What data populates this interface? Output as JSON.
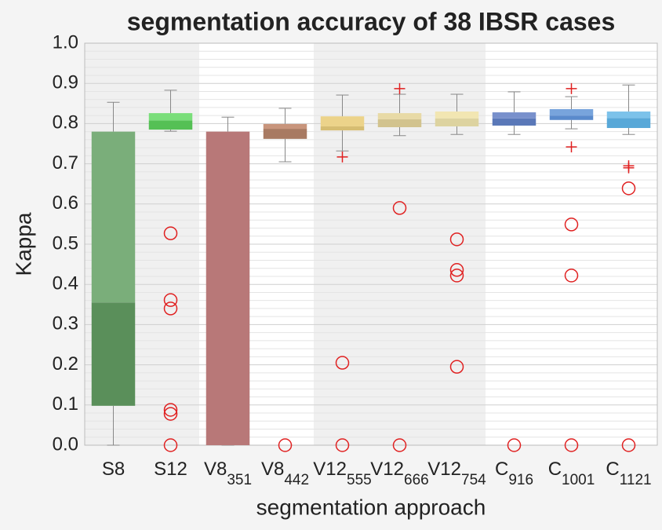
{
  "chart_data": {
    "type": "box",
    "title": "segmentation accuracy of 38 IBSR cases",
    "xlabel": "segmentation approach",
    "ylabel": "Kappa",
    "categories": [
      "S8",
      "S12",
      "V8",
      "V8",
      "V12",
      "V12",
      "V12",
      "C",
      "C",
      "C"
    ],
    "category_subscripts": [
      null,
      null,
      "351",
      "442",
      "555",
      "666",
      "754",
      "916",
      "1001",
      "1121"
    ],
    "shaded": [
      true,
      true,
      false,
      false,
      true,
      true,
      true,
      false,
      false,
      false
    ],
    "ylim": [
      0,
      1
    ],
    "yticks": [
      {
        "value": 0,
        "label": "0.0"
      },
      0.1,
      0.2,
      0.3,
      0.4,
      0.5,
      0.6,
      0.7,
      0.8,
      0.9,
      {
        "value": 1,
        "label": "1.0"
      }
    ],
    "grid": true,
    "outlier_color": "#e02020",
    "boxes": [
      {
        "whisker_low": 0.0,
        "q1": 0.098,
        "median": 0.355,
        "q3": 0.78,
        "whisker_high": 0.853,
        "outliers": [],
        "far_outliers": [],
        "color_low": "#5a8f5a",
        "color_high": "#7aae7a"
      },
      {
        "whisker_low": 0.781,
        "q1": 0.785,
        "median": 0.808,
        "q3": 0.826,
        "whisker_high": 0.883,
        "outliers": [],
        "far_outliers": [
          0.527,
          0.361,
          0.34,
          0.088,
          0.078,
          0.0
        ],
        "color_low": "#55c055",
        "color_high": "#7ade7a"
      },
      {
        "whisker_low": 0.0,
        "q1": 0.0,
        "median": 0.78,
        "q3": 0.78,
        "whisker_high": 0.816,
        "outliers": [],
        "far_outliers": [],
        "color_low": "#b87878",
        "color_high": "#c88a8a"
      },
      {
        "whisker_low": 0.705,
        "q1": 0.762,
        "median": 0.787,
        "q3": 0.799,
        "whisker_high": 0.838,
        "outliers": [],
        "far_outliers": [
          0.0
        ],
        "color_low": "#a87a62",
        "color_high": "#c8957c"
      },
      {
        "whisker_low": 0.732,
        "q1": 0.783,
        "median": 0.793,
        "q3": 0.818,
        "whisker_high": 0.871,
        "outliers": [
          0.717
        ],
        "far_outliers": [
          0.205,
          0.0
        ],
        "color_low": "#d6bd72",
        "color_high": "#ecd38a"
      },
      {
        "whisker_low": 0.77,
        "q1": 0.791,
        "median": 0.811,
        "q3": 0.826,
        "whisker_high": 0.873,
        "outliers": [
          0.887
        ],
        "far_outliers": [
          0.59,
          0.0
        ],
        "color_low": "#d2c38e",
        "color_high": "#e8daa6"
      },
      {
        "whisker_low": 0.773,
        "q1": 0.793,
        "median": 0.813,
        "q3": 0.83,
        "whisker_high": 0.873,
        "outliers": [],
        "far_outliers": [
          0.512,
          0.436,
          0.422,
          0.195
        ],
        "color_low": "#ddd3a0",
        "color_high": "#f2e6b2"
      },
      {
        "whisker_low": 0.773,
        "q1": 0.795,
        "median": 0.813,
        "q3": 0.828,
        "whisker_high": 0.879,
        "outliers": [],
        "far_outliers": [
          0.0
        ],
        "color_low": "#5a78b8",
        "color_high": "#7890cc"
      },
      {
        "whisker_low": 0.787,
        "q1": 0.809,
        "median": 0.82,
        "q3": 0.836,
        "whisker_high": 0.867,
        "outliers": [
          0.887,
          0.742
        ],
        "far_outliers": [
          0.549,
          0.422,
          0.0
        ],
        "color_low": "#5a8acc",
        "color_high": "#78a4dc"
      },
      {
        "whisker_low": 0.773,
        "q1": 0.789,
        "median": 0.814,
        "q3": 0.83,
        "whisker_high": 0.896,
        "outliers": [
          0.695,
          0.69
        ],
        "far_outliers": [
          0.639,
          0.0
        ],
        "color_low": "#58a8d8",
        "color_high": "#7cc2ea"
      }
    ]
  }
}
